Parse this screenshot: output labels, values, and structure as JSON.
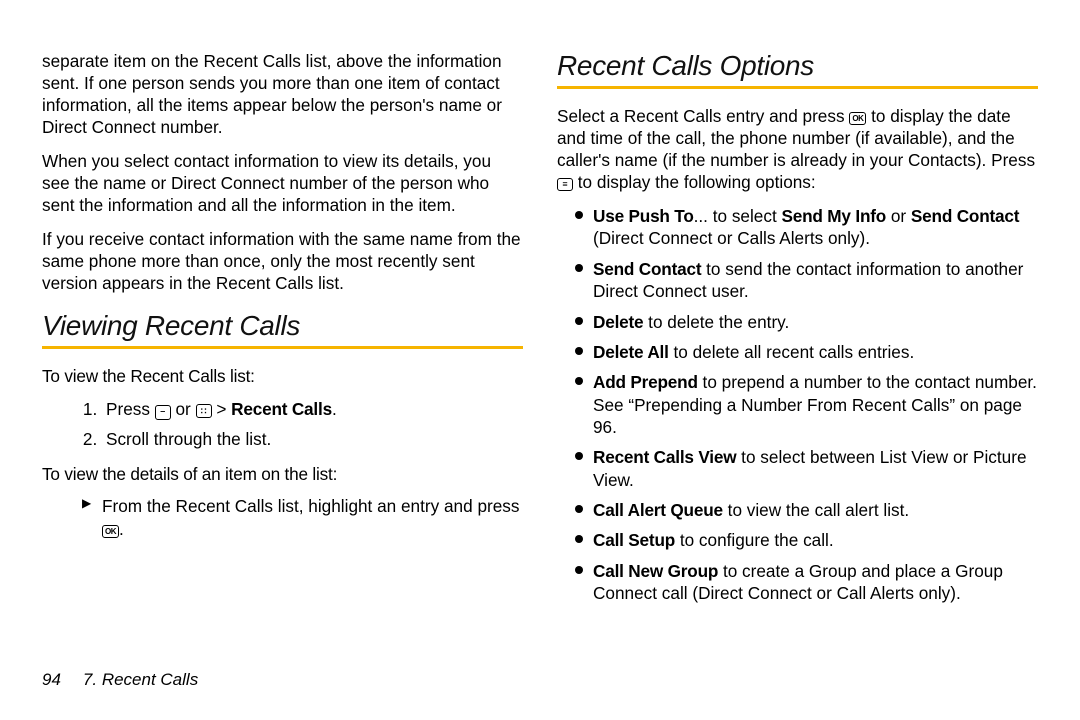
{
  "accent_color": "#f6b400",
  "left": {
    "para1": "separate item on the Recent Calls list, above the information sent. If one person sends you more than one item of contact information, all the items appear below the person's name or Direct Connect number.",
    "para2": "When you select contact information to view its details, you see the name or Direct Connect number of the person who sent the information and all the information in the item.",
    "para3": "If you receive contact information with the same name from the same phone more than once, only the most recently sent version appears in the Recent Calls list.",
    "h2": "Viewing Recent Calls",
    "sub1": "To view the Recent Calls list:",
    "step1_a": "Press ",
    "step1_b": " or ",
    "step1_c": " > ",
    "step1_bold": "Recent Calls",
    "step1_d": ".",
    "step2": "Scroll through the list.",
    "sub2": "To view the details of an item on the list:",
    "arrow_a": "From the Recent Calls list, highlight an entry and press ",
    "arrow_b": "."
  },
  "right": {
    "h2": "Recent Calls Options",
    "intro_a": "Select a Recent Calls entry and press ",
    "intro_b": " to display the date and time of the call, the phone number (if available), and the caller's name (if the number is already in your Contacts). Press ",
    "intro_c": " to display the following options:",
    "items": [
      {
        "bold": "Use Push To",
        "rest_a": "... to select ",
        "bold2": "Send My Info",
        "mid": " or ",
        "bold3": "Send Contact",
        "rest_b": " (Direct Connect or Calls Alerts only)."
      },
      {
        "bold": "Send Contact",
        "rest": " to send the contact information to another Direct Connect user."
      },
      {
        "bold": "Delete",
        "rest": " to delete the entry."
      },
      {
        "bold": "Delete All",
        "rest": " to delete all recent calls entries."
      },
      {
        "bold": "Add Prepend",
        "rest": " to prepend a number to the contact number. See “Prepending a Number From Recent Calls” on page 96."
      },
      {
        "bold": "Recent Calls View",
        "rest": " to select between List View or Picture View."
      },
      {
        "bold": "Call Alert Queue",
        "rest": " to view the call alert list."
      },
      {
        "bold": "Call Setup",
        "rest": " to configure the call."
      },
      {
        "bold": "Call New Group",
        "rest": " to create a Group and place a Group Connect call (Direct Connect or Call Alerts only)."
      }
    ]
  },
  "keys": {
    "dash": "–",
    "grid": "∷",
    "ok": "OK",
    "menu": "≡"
  },
  "footer": {
    "page": "94",
    "chapter": "7. Recent Calls"
  }
}
